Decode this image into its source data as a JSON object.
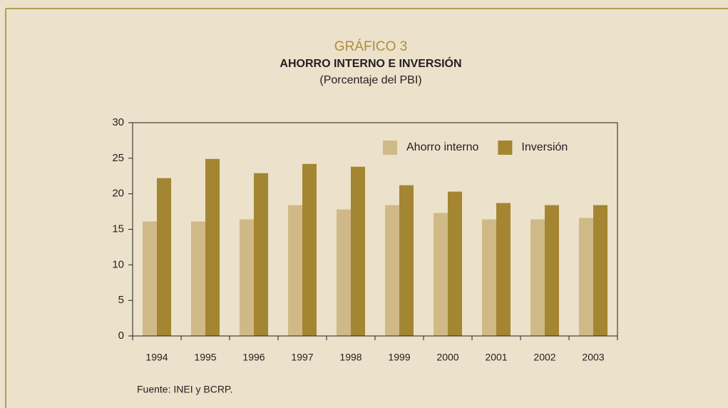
{
  "chart_data": {
    "type": "bar",
    "title": "GRÁFICO 3",
    "subtitle": "AHORRO INTERNO E INVERSIÓN",
    "y_label": "(Porcentaje del PBI)",
    "source": "Fuente: INEI y BCRP.",
    "categories": [
      "1994",
      "1995",
      "1996",
      "1997",
      "1998",
      "1999",
      "2000",
      "2001",
      "2002",
      "2003"
    ],
    "series": [
      {
        "name": "Ahorro interno",
        "color": "#cfb987",
        "values": [
          16.1,
          16.1,
          16.4,
          18.4,
          17.8,
          18.4,
          17.3,
          16.4,
          16.4,
          16.6
        ]
      },
      {
        "name": "Inversión",
        "color": "#a48532",
        "values": [
          22.2,
          24.9,
          22.9,
          24.2,
          23.8,
          21.2,
          20.3,
          18.7,
          18.4,
          18.4
        ]
      }
    ],
    "ylim": [
      0,
      30
    ],
    "yticks": [
      0,
      5,
      10,
      15,
      20,
      25,
      30
    ],
    "legend": "upper right"
  }
}
